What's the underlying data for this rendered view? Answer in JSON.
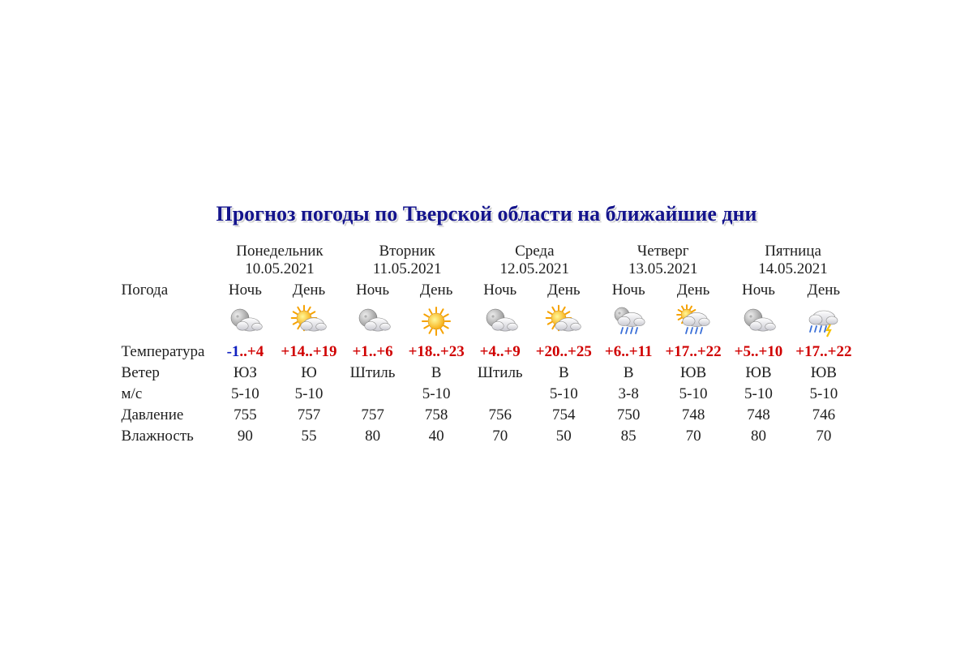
{
  "title": "Прогноз погоды по Тверской области на ближайшие дни",
  "labels": {
    "weather": "Погода",
    "temperature": "Температура",
    "wind": "Ветер",
    "wind_units": "м/с",
    "pressure": "Давление",
    "humidity": "Влажность"
  },
  "period_labels": {
    "night": "Ночь",
    "day": "День"
  },
  "colors": {
    "title": "#14148c",
    "text": "#202020",
    "hot": "#d00000",
    "cold": "#1020c0",
    "background": "#ffffff"
  },
  "typography": {
    "title_fontsize": 26,
    "body_fontsize": 19,
    "font_family": "Times New Roman"
  },
  "days": [
    {
      "weekday": "Понедельник",
      "date": "10.05.2021",
      "night": {
        "icon": "moon-cloud",
        "temp_low": "-1",
        "temp_low_color": "#1020c0",
        "temp_high": "+4",
        "wind_dir": "ЮЗ",
        "wind_speed": "5-10",
        "pressure": "755",
        "humidity": "90"
      },
      "day": {
        "icon": "sun-cloud",
        "temp_low": "+14",
        "temp_low_color": "#d00000",
        "temp_high": "+19",
        "wind_dir": "Ю",
        "wind_speed": "5-10",
        "pressure": "757",
        "humidity": "55"
      }
    },
    {
      "weekday": "Вторник",
      "date": "11.05.2021",
      "night": {
        "icon": "moon-cloud",
        "temp_low": "+1",
        "temp_low_color": "#d00000",
        "temp_high": "+6",
        "wind_dir": "Штиль",
        "wind_speed": "",
        "pressure": "757",
        "humidity": "80"
      },
      "day": {
        "icon": "sun",
        "temp_low": "+18",
        "temp_low_color": "#d00000",
        "temp_high": "+23",
        "wind_dir": "В",
        "wind_speed": "5-10",
        "pressure": "758",
        "humidity": "40"
      }
    },
    {
      "weekday": "Среда",
      "date": "12.05.2021",
      "night": {
        "icon": "moon-cloud",
        "temp_low": "+4",
        "temp_low_color": "#d00000",
        "temp_high": "+9",
        "wind_dir": "Штиль",
        "wind_speed": "",
        "pressure": "756",
        "humidity": "70"
      },
      "day": {
        "icon": "sun-cloud",
        "temp_low": "+20",
        "temp_low_color": "#d00000",
        "temp_high": "+25",
        "wind_dir": "В",
        "wind_speed": "5-10",
        "pressure": "754",
        "humidity": "50"
      }
    },
    {
      "weekday": "Четверг",
      "date": "13.05.2021",
      "night": {
        "icon": "moon-cloud-rain",
        "temp_low": "+6",
        "temp_low_color": "#d00000",
        "temp_high": "+11",
        "wind_dir": "В",
        "wind_speed": "3-8",
        "pressure": "750",
        "humidity": "85"
      },
      "day": {
        "icon": "sun-cloud-rain",
        "temp_low": "+17",
        "temp_low_color": "#d00000",
        "temp_high": "+22",
        "wind_dir": "ЮВ",
        "wind_speed": "5-10",
        "pressure": "748",
        "humidity": "70"
      }
    },
    {
      "weekday": "Пятница",
      "date": "14.05.2021",
      "night": {
        "icon": "moon-cloud",
        "temp_low": "+5",
        "temp_low_color": "#d00000",
        "temp_high": "+10",
        "wind_dir": "ЮВ",
        "wind_speed": "5-10",
        "pressure": "748",
        "humidity": "80"
      },
      "day": {
        "icon": "cloud-storm",
        "temp_low": "+17",
        "temp_low_color": "#d00000",
        "temp_high": "+22",
        "wind_dir": "ЮВ",
        "wind_speed": "5-10",
        "pressure": "746",
        "humidity": "70"
      }
    }
  ]
}
